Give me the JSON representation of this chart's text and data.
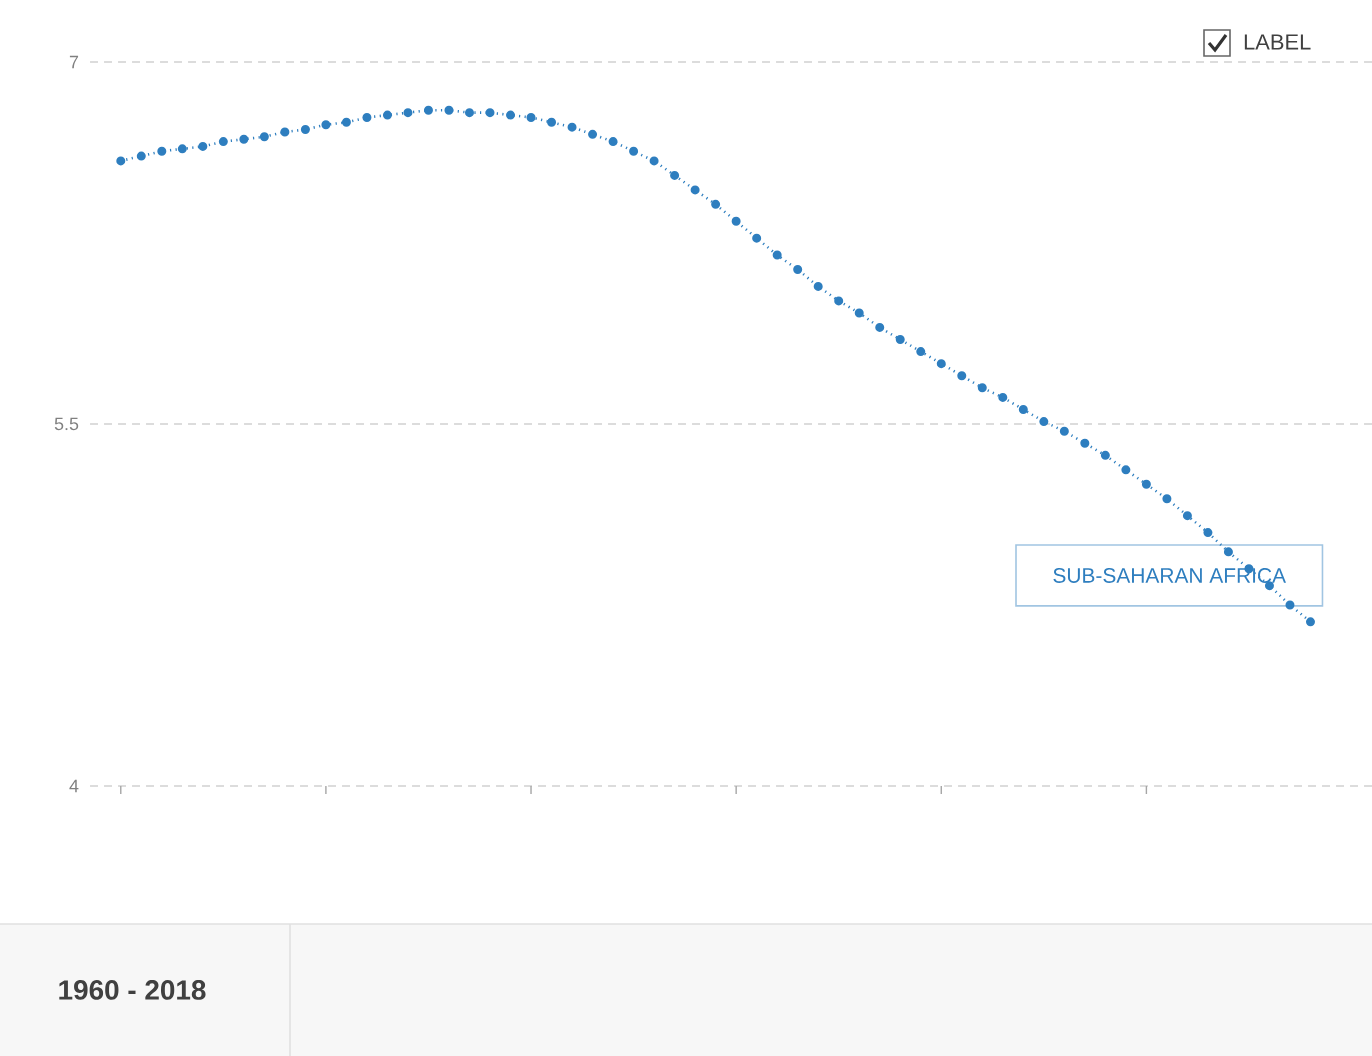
{
  "chart_data": {
    "type": "line",
    "categories": [
      null,
      null,
      null,
      null,
      null,
      null,
      null,
      null,
      null,
      null,
      null,
      null,
      null,
      null,
      null,
      null,
      null,
      null,
      null,
      null,
      null,
      null,
      null,
      null,
      null,
      null,
      null,
      null,
      null,
      null,
      null,
      null,
      null,
      null,
      null,
      null,
      null,
      null,
      null,
      null,
      null,
      null,
      null,
      null,
      null,
      null,
      null,
      null,
      null,
      null,
      null,
      null,
      null,
      null,
      null,
      null,
      null,
      null,
      null
    ],
    "series": [
      {
        "name": "SUB-SAHARAN AFRICA",
        "color": "#2e7ebf",
        "values": [
          6.59,
          6.61,
          6.63,
          6.64,
          6.65,
          6.67,
          6.68,
          6.69,
          6.71,
          6.72,
          6.74,
          6.75,
          6.77,
          6.78,
          6.79,
          6.8,
          6.8,
          6.79,
          6.79,
          6.78,
          6.77,
          6.75,
          6.73,
          6.7,
          6.67,
          6.63,
          6.59,
          6.53,
          6.47,
          6.41,
          6.34,
          6.27,
          6.2,
          6.14,
          6.07,
          6.01,
          5.96,
          5.9,
          5.85,
          5.8,
          5.75,
          5.7,
          5.65,
          5.61,
          5.56,
          5.51,
          5.47,
          5.42,
          5.37,
          5.31,
          5.25,
          5.19,
          5.12,
          5.05,
          4.97,
          4.9,
          4.83,
          4.75,
          4.68
        ]
      }
    ],
    "ylim": [
      4,
      7
    ],
    "yticks": [
      4,
      5.5,
      7
    ],
    "tick_labels": "y",
    "grid": "y",
    "marker": "circle",
    "line_style": "dotted",
    "annotations": [
      "LABEL",
      "1960 - 2018"
    ]
  }
}
